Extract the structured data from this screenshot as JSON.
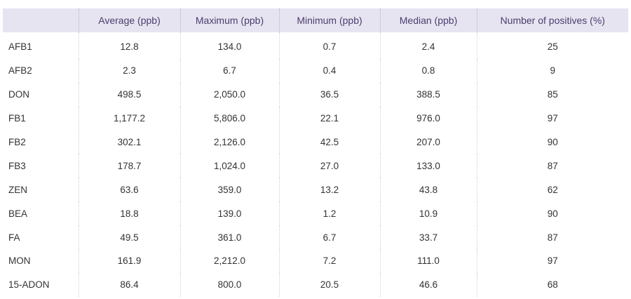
{
  "table": {
    "headers": [
      "",
      "Average (ppb)",
      "Maximum (ppb)",
      "Minimum (ppb)",
      "Median (ppb)",
      "Number of positives (%)"
    ],
    "rows": [
      [
        "AFB1",
        "12.8",
        "134.0",
        "0.7",
        "2.4",
        "25"
      ],
      [
        "AFB2",
        "2.3",
        "6.7",
        "0.4",
        "0.8",
        "9"
      ],
      [
        "DON",
        "498.5",
        "2,050.0",
        "36.5",
        "388.5",
        "85"
      ],
      [
        "FB1",
        "1,177.2",
        "5,806.0",
        "22.1",
        "976.0",
        "97"
      ],
      [
        "FB2",
        "302.1",
        "2,126.0",
        "42.5",
        "207.0",
        "90"
      ],
      [
        "FB3",
        "178.7",
        "1,024.0",
        "27.0",
        "133.0",
        "87"
      ],
      [
        "ZEN",
        "63.6",
        "359.0",
        "13.2",
        "43.8",
        "62"
      ],
      [
        "BEA",
        "18.8",
        "139.0",
        "1.2",
        "10.9",
        "90"
      ],
      [
        "FA",
        "49.5",
        "361.0",
        "6.7",
        "33.7",
        "87"
      ],
      [
        "MON",
        "161.9",
        "2,212.0",
        "7.2",
        "111.0",
        "97"
      ],
      [
        "15-ADON",
        "86.4",
        "800.0",
        "20.5",
        "46.6",
        "68"
      ]
    ]
  },
  "colors": {
    "header_bg": "#e7e4f1",
    "header_text": "#4a3d6e",
    "body_text": "#333333"
  }
}
